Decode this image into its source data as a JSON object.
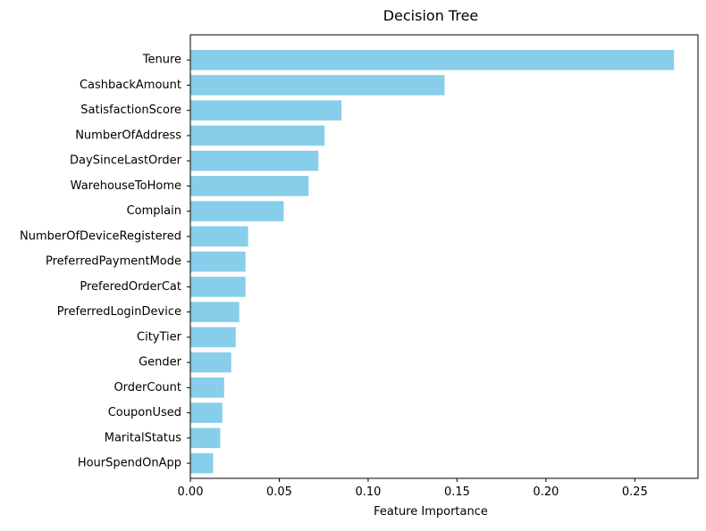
{
  "chart_data": {
    "type": "bar",
    "orientation": "horizontal",
    "title": "Decision Tree",
    "xlabel": "Feature Importance",
    "ylabel": "",
    "xlim": [
      0,
      0.2855
    ],
    "xticks": [
      0.0,
      0.05,
      0.1,
      0.15,
      0.2,
      0.25
    ],
    "xtick_labels": [
      "0.00",
      "0.05",
      "0.10",
      "0.15",
      "0.20",
      "0.25"
    ],
    "grid": false,
    "bar_color": "#87ceeb",
    "categories": [
      "Tenure",
      "CashbackAmount",
      "SatisfactionScore",
      "NumberOfAddress",
      "DaySinceLastOrder",
      "WarehouseToHome",
      "Complain",
      "NumberOfDeviceRegistered",
      "PreferredPaymentMode",
      "PreferedOrderCat",
      "PreferredLoginDevice",
      "CityTier",
      "Gender",
      "OrderCount",
      "CouponUsed",
      "MaritalStatus",
      "HourSpendOnApp"
    ],
    "values": [
      0.272,
      0.143,
      0.085,
      0.0755,
      0.072,
      0.0665,
      0.0525,
      0.0325,
      0.031,
      0.031,
      0.0275,
      0.0255,
      0.023,
      0.019,
      0.018,
      0.0168,
      0.0128
    ]
  }
}
